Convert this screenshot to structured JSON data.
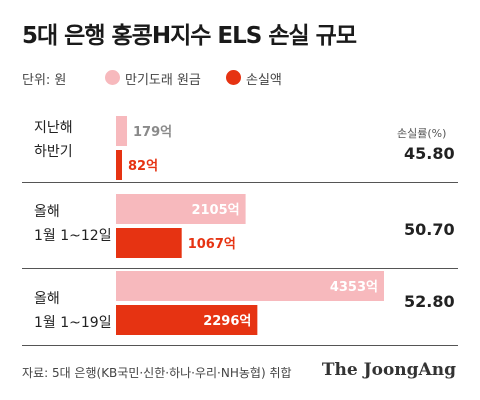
{
  "title": "5대 은행 홍콩H지수 ELS 손실 규모",
  "unit_label": "단위: 원",
  "legend": [
    {
      "label": "만기도래 원금",
      "color": "#f7b9bd"
    },
    {
      "label": "손실액",
      "color": "#e63312"
    }
  ],
  "rate_header": "손실률(%)",
  "source": "자료: 5대 은행(KB국민·신한·하나·우리·NH농협) 취합",
  "brand": "The JoongAng",
  "chart_data": {
    "type": "bar",
    "orientation": "horizontal",
    "title": "5대 은행 홍콩H지수 ELS 손실 규모",
    "unit": "단위: 원",
    "categories": [
      [
        "지난해",
        "하반기"
      ],
      [
        "올해",
        "1월 1~12일"
      ],
      [
        "올해",
        "1월 1~19일"
      ]
    ],
    "series": [
      {
        "name": "만기도래 원금",
        "color": "#f7b9bd",
        "values": [
          179,
          2105,
          4353
        ],
        "labels": [
          "179억",
          "2105억",
          "4353억"
        ]
      },
      {
        "name": "손실액",
        "color": "#e63312",
        "values": [
          82,
          1067,
          2296
        ],
        "labels": [
          "82억",
          "1067억",
          "2296억"
        ]
      }
    ],
    "loss_rate": {
      "header": "손실률(%)",
      "values": [
        "45.80",
        "50.70",
        "52.80"
      ]
    },
    "xlim": [
      0,
      4353
    ],
    "grid": false,
    "legend_position": "top-left"
  }
}
